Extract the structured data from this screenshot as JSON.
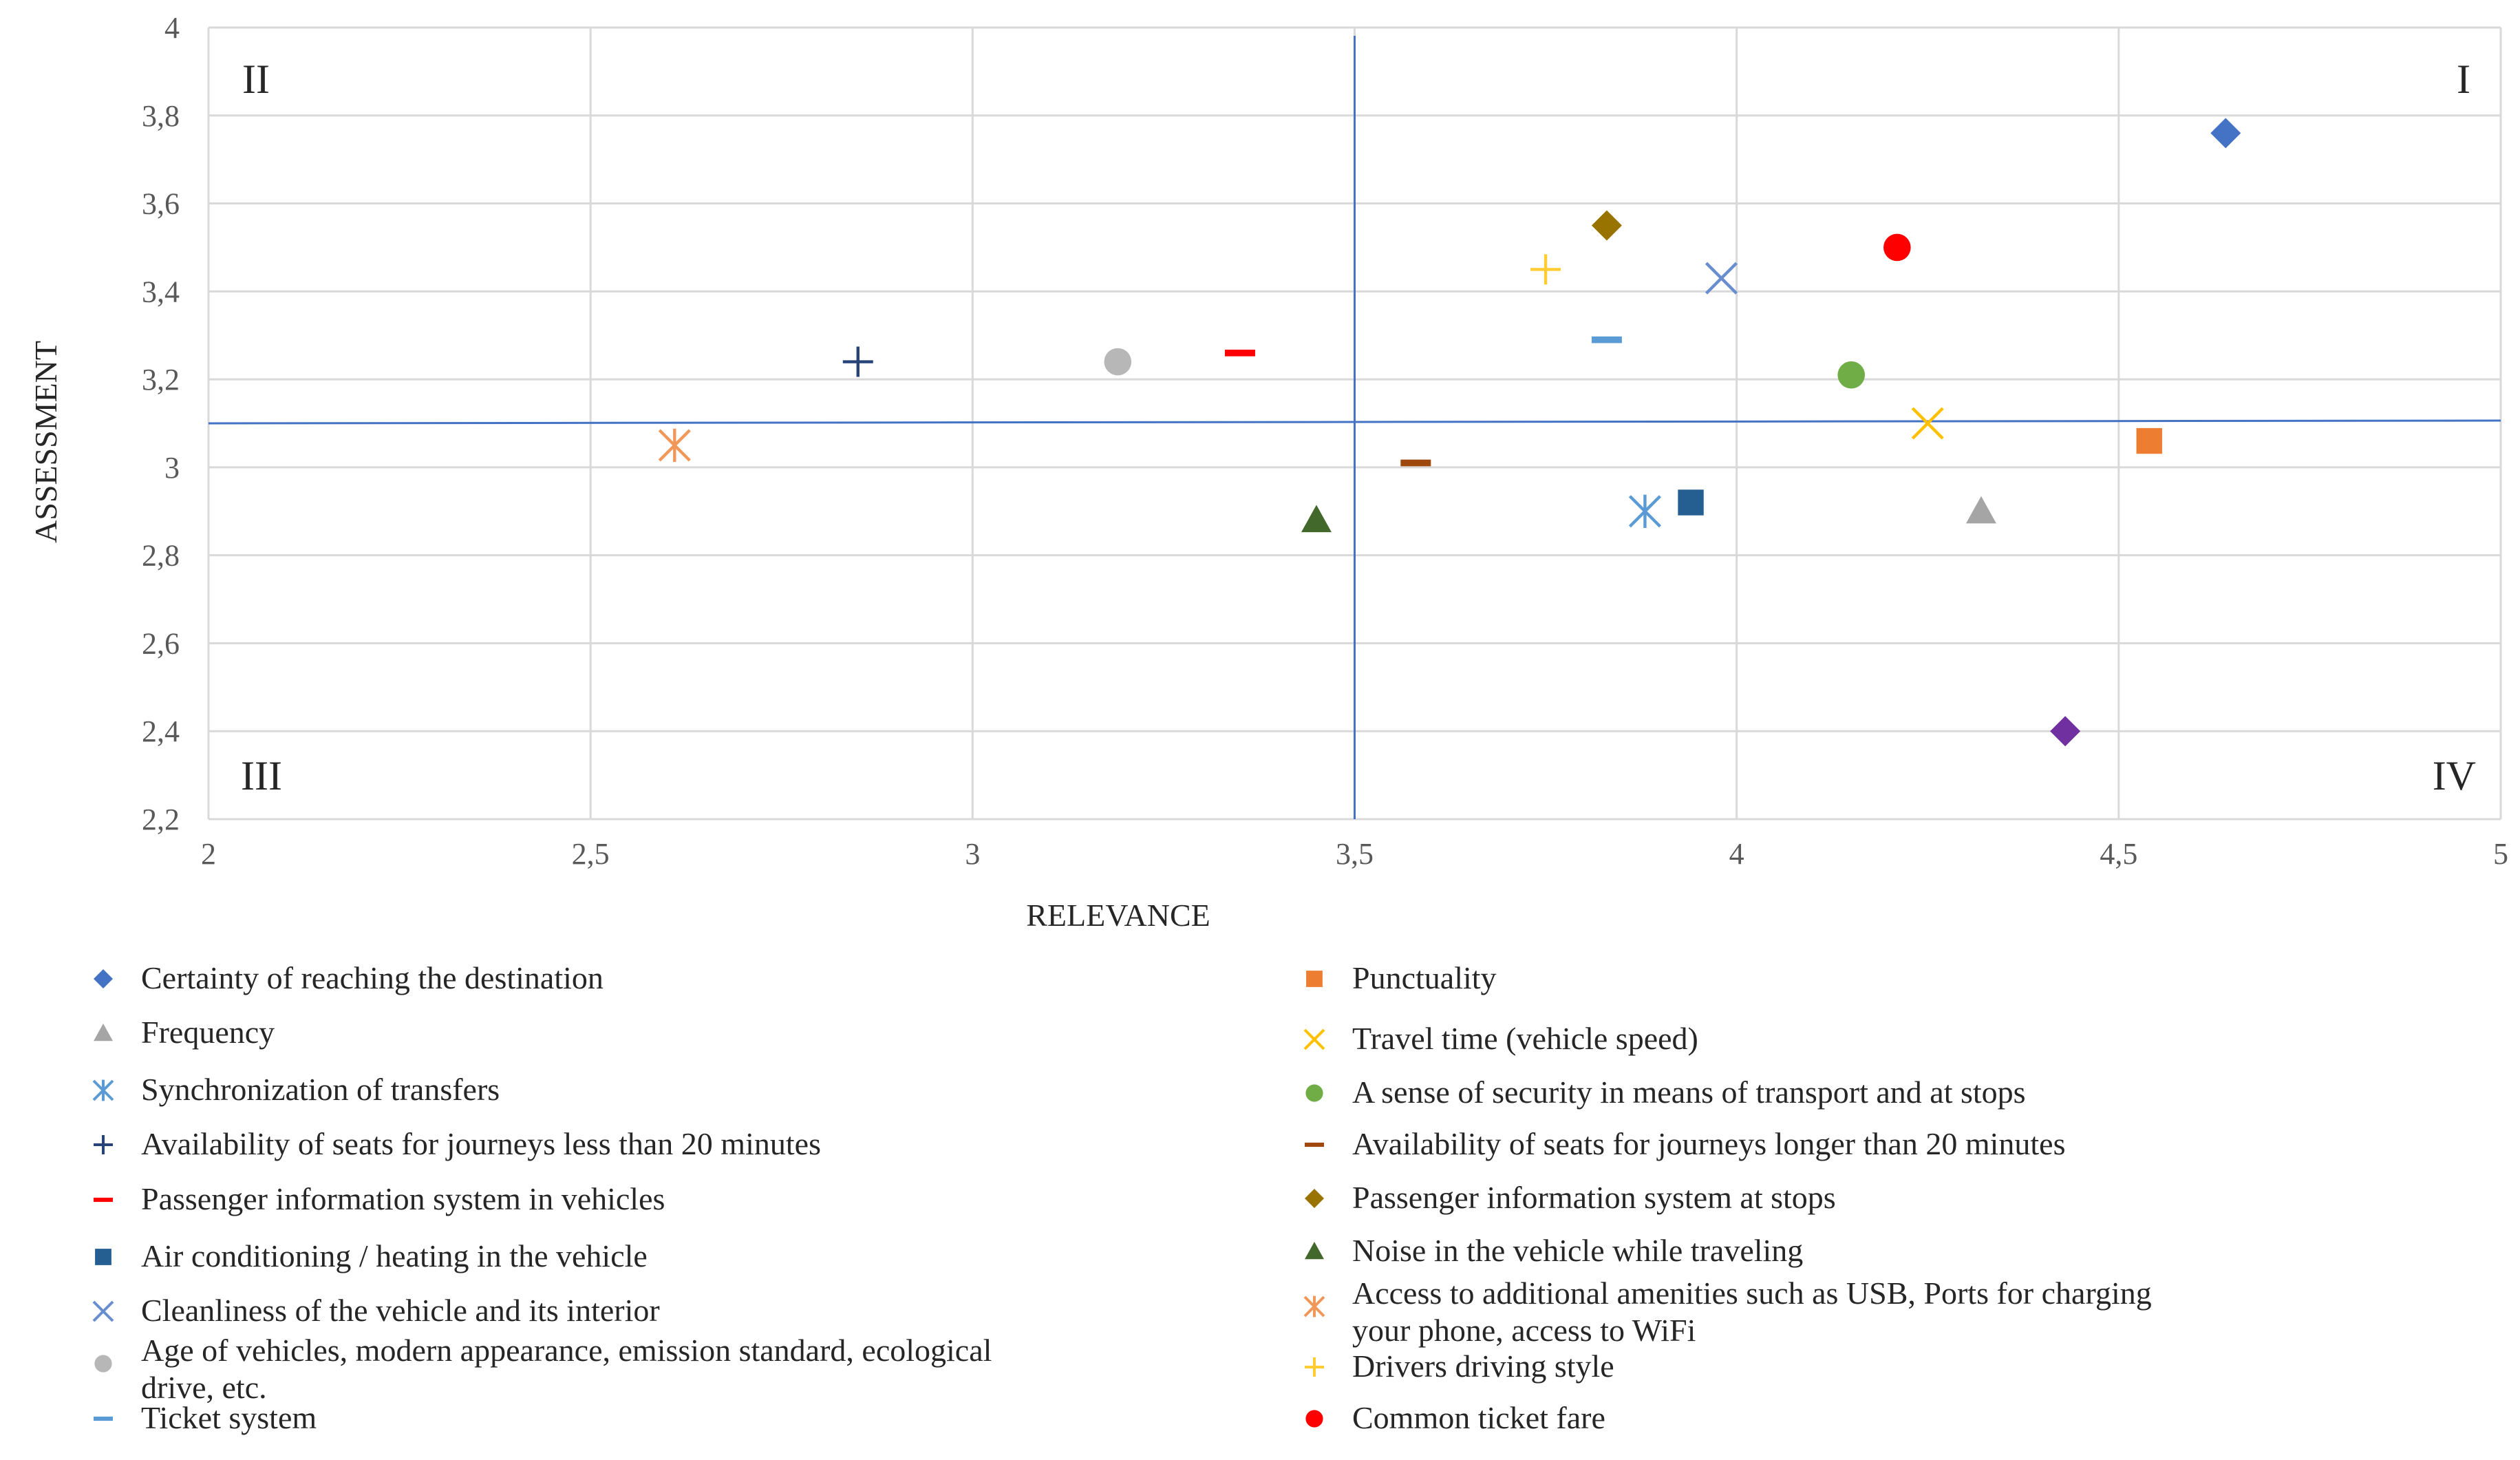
{
  "chart_data": {
    "type": "scatter",
    "xlabel": "RELEVANCE",
    "ylabel": "ASSESSMENT",
    "xlim": [
      2,
      5
    ],
    "ylim": [
      2.2,
      4
    ],
    "x_ticks": [
      2,
      2.5,
      3,
      3.5,
      4,
      4.5,
      5
    ],
    "x_tick_labels": [
      "2",
      "2,5",
      "3",
      "3,5",
      "4",
      "4,5",
      "5"
    ],
    "y_ticks": [
      2.2,
      2.4,
      2.6,
      2.8,
      3,
      3.2,
      3.4,
      3.6,
      3.8,
      4
    ],
    "y_tick_labels": [
      "2,2",
      "2,4",
      "2,6",
      "2,8",
      "3",
      "3,2",
      "3,4",
      "3,6",
      "3,8",
      "4"
    ],
    "grid": true,
    "reference_lines": {
      "x": 3.5,
      "y": 3.1,
      "color": "#4472C4"
    },
    "quadrant_labels": [
      {
        "label": "I",
        "position": "top-right"
      },
      {
        "label": "II",
        "position": "top-left"
      },
      {
        "label": "III",
        "position": "bottom-left"
      },
      {
        "label": "IV",
        "position": "bottom-right"
      }
    ],
    "legend_placement": "bottom",
    "series": [
      {
        "name": "Certainty of reaching the destination",
        "x": 4.64,
        "y": 3.76,
        "marker": "diamond",
        "color": "#4472C4"
      },
      {
        "name": "Punctuality",
        "x": 4.54,
        "y": 3.06,
        "marker": "square",
        "color": "#ED7D31"
      },
      {
        "name": "Frequency",
        "x": 4.32,
        "y": 2.9,
        "marker": "triangle",
        "color": "#A5A5A5"
      },
      {
        "name": "Travel time (vehicle speed)",
        "x": 4.25,
        "y": 3.1,
        "marker": "x",
        "color": "#FFC000"
      },
      {
        "name": "Synchronization of transfers",
        "x": 3.88,
        "y": 2.9,
        "marker": "asterisk",
        "color": "#5B9BD5"
      },
      {
        "name": "A sense of security in means of transport and at stops",
        "x": 4.15,
        "y": 3.21,
        "marker": "circle",
        "color": "#70AD47"
      },
      {
        "name": "Availability of seats for journeys less than 20 minutes",
        "x": 2.85,
        "y": 3.24,
        "marker": "plus",
        "color": "#264478"
      },
      {
        "name": "Availability of seats for journeys longer than 20 minutes",
        "x": 3.58,
        "y": 3.01,
        "marker": "dash",
        "color": "#9E480E"
      },
      {
        "name": "Passenger information system in vehicles",
        "x": 3.35,
        "y": 3.26,
        "marker": "dash",
        "color": "#FF0000"
      },
      {
        "name": "Passenger information system at stops",
        "x": 3.83,
        "y": 3.55,
        "marker": "diamond",
        "color": "#997300"
      },
      {
        "name": "Air conditioning / heating in the vehicle",
        "x": 3.94,
        "y": 2.92,
        "marker": "square",
        "color": "#255E91"
      },
      {
        "name": "Noise in the vehicle while traveling",
        "x": 3.45,
        "y": 2.88,
        "marker": "triangle",
        "color": "#43682B"
      },
      {
        "name": "Cleanliness of the vehicle and its interior",
        "x": 3.98,
        "y": 3.43,
        "marker": "x",
        "color": "#698ED0"
      },
      {
        "name": "Access to additional amenities such as USB, Ports for charging your phone, access to  WiFi",
        "x": 2.61,
        "y": 3.05,
        "marker": "asterisk",
        "color": "#F1975A"
      },
      {
        "name": "Age of vehicles, modern appearance, emission standard, ecological drive, etc.",
        "x": 3.19,
        "y": 3.24,
        "marker": "circle",
        "color": "#B7B7B7"
      },
      {
        "name": "Drivers driving style",
        "x": 3.75,
        "y": 3.45,
        "marker": "plus",
        "color": "#FFCD33"
      },
      {
        "name": "Ticket system",
        "x": 3.83,
        "y": 3.29,
        "marker": "dash",
        "color": "#5B9BD5"
      },
      {
        "name": "Common ticket fare",
        "x": 4.21,
        "y": 3.5,
        "marker": "circle",
        "color": "#FF0000"
      },
      {
        "name": "",
        "x": 4.43,
        "y": 2.4,
        "marker": "diamond",
        "color": "#7030A0"
      }
    ]
  }
}
